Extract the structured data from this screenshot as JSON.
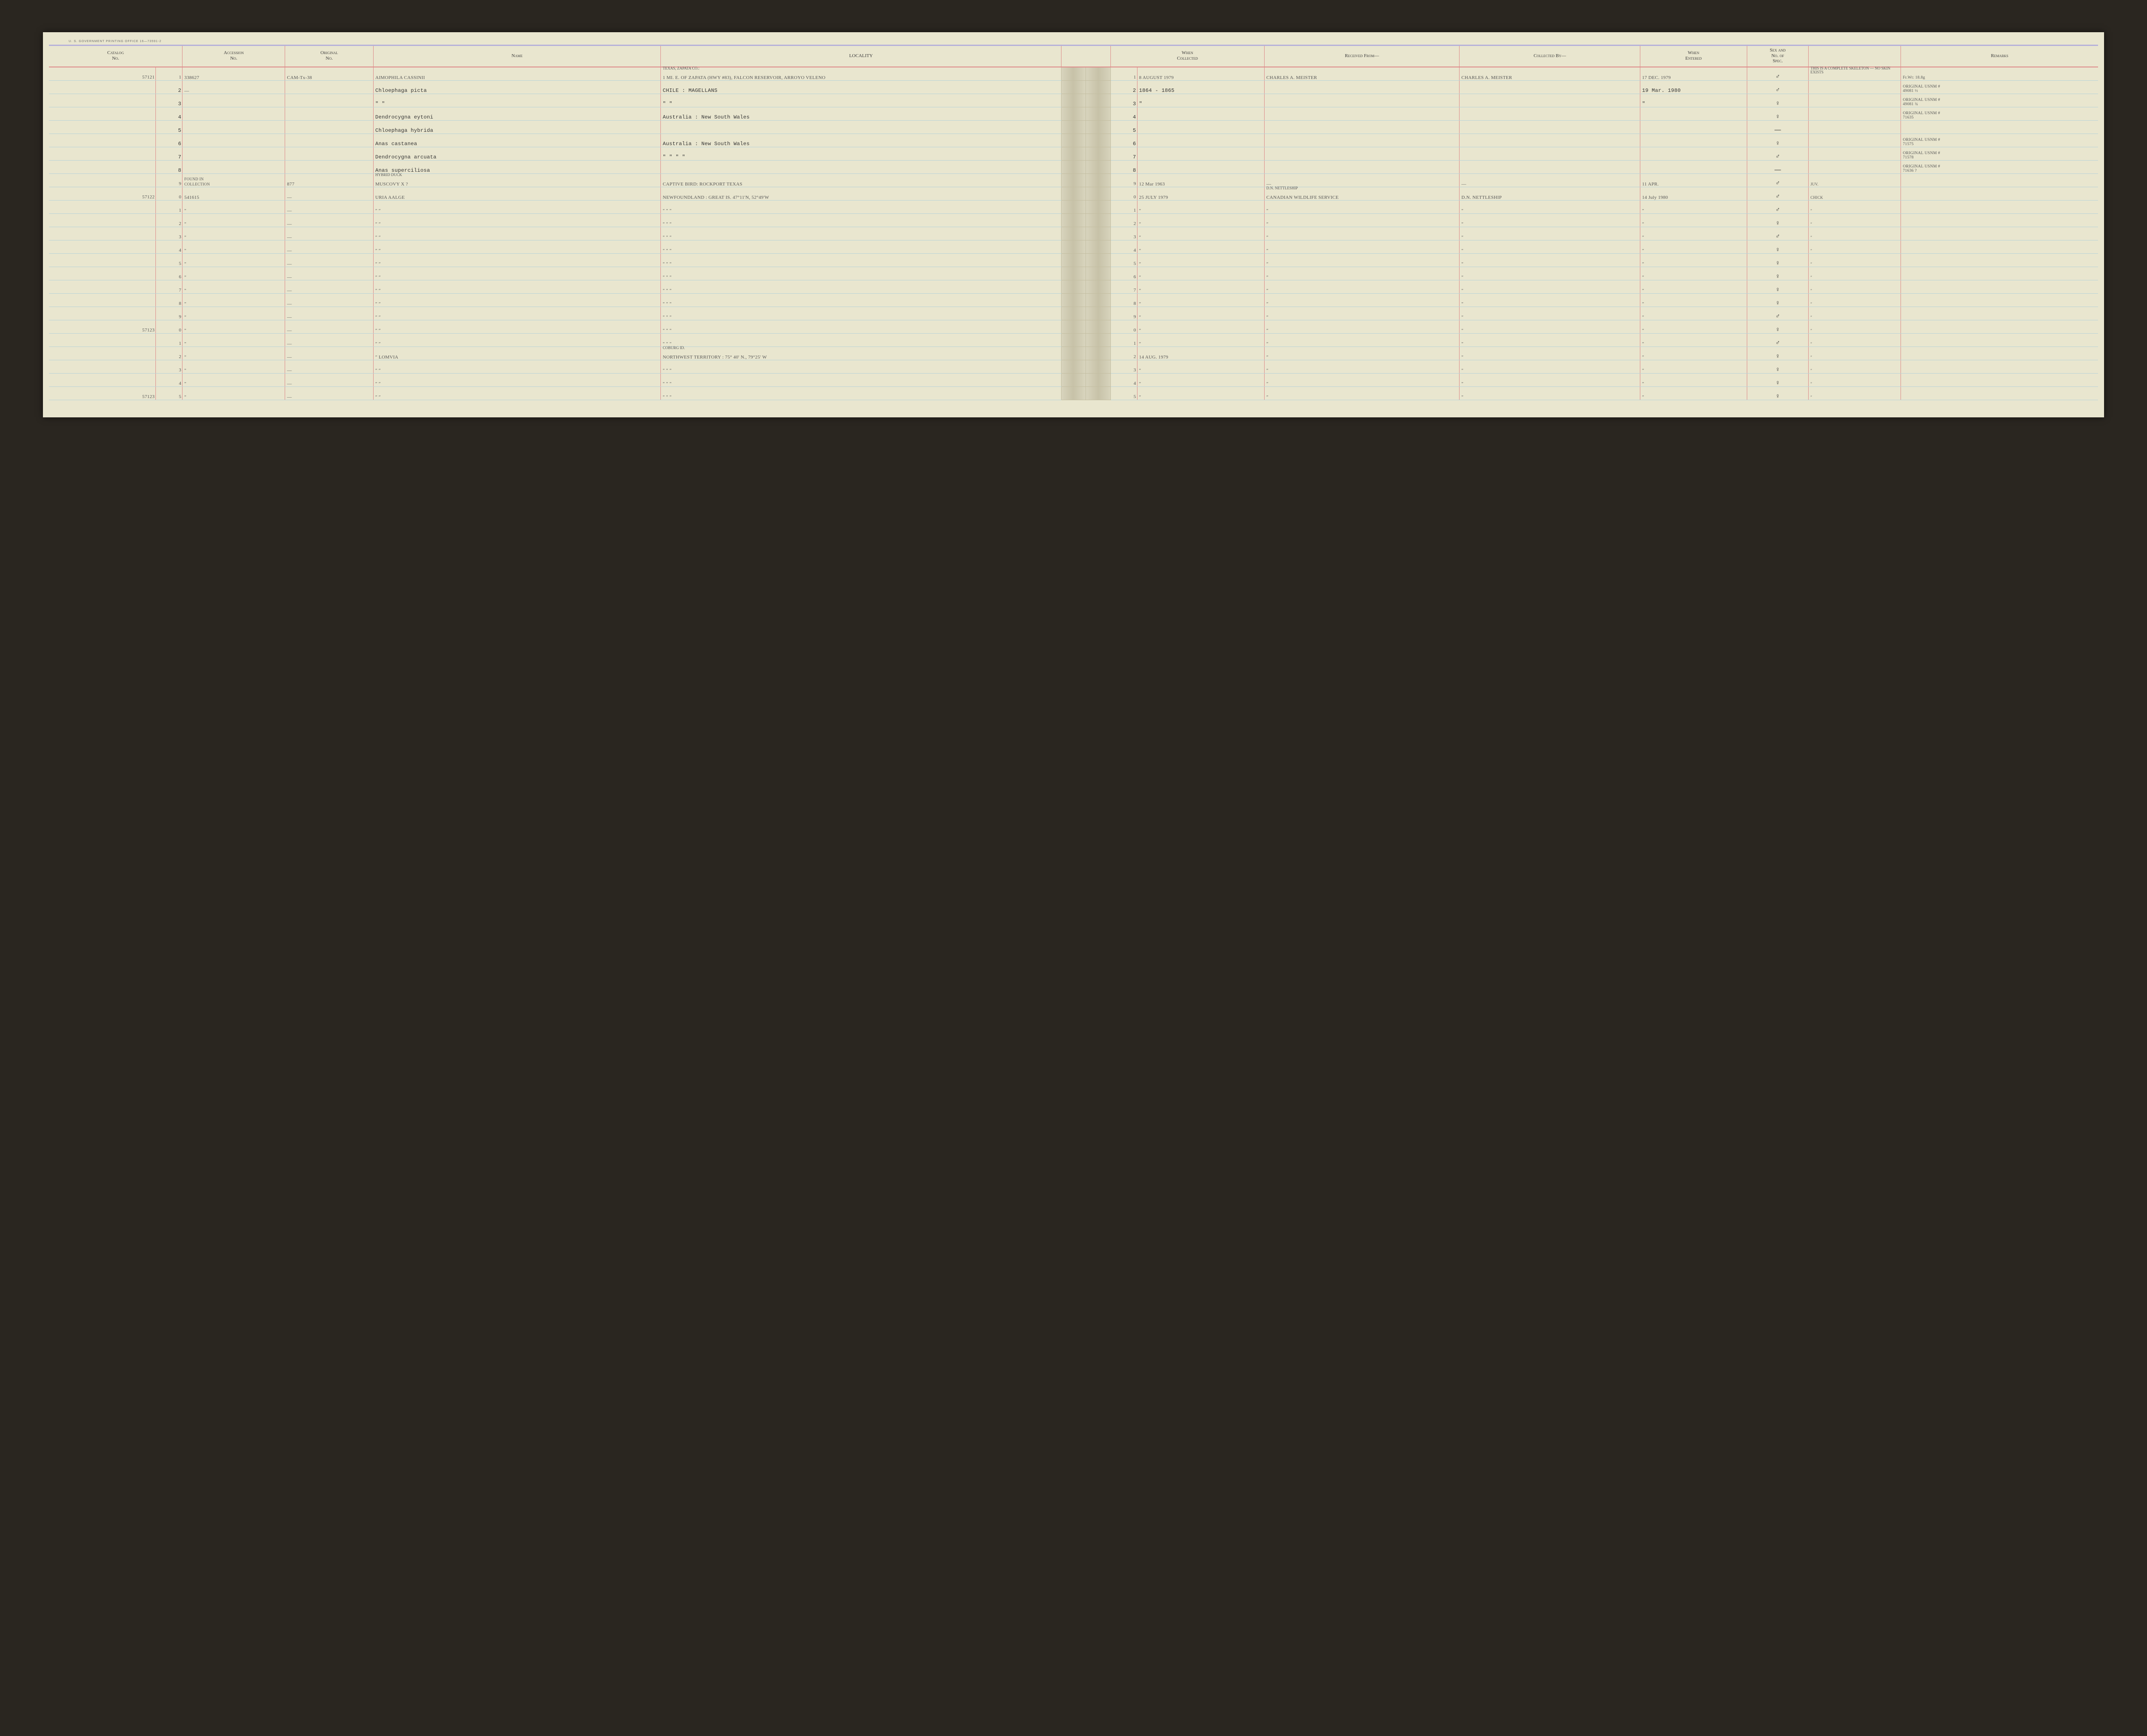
{
  "meta": {
    "gov_print_line": "U. S. GOVERNMENT PRINTING OFFICE    16—73591-2",
    "page_bg": "#e9e6cf",
    "rule_red": "#d88",
    "rule_blue": "#b9d3d8",
    "rule_purple": "#b6b0da"
  },
  "headers": {
    "catalog": "Catalog\nNo.",
    "accession": "Accession\nNo.",
    "original": "Original\nNo.",
    "name": "Name",
    "locality": "LOCALITY",
    "when_collected": "When\nCollected",
    "received_from": "Received From—",
    "collected_by": "Collected By—",
    "when_entered": "When\nEntered",
    "sex": "Sex and\nNo. of\nSpec.",
    "remarks": "Remarks"
  },
  "rows": [
    {
      "cat": "57121",
      "sub": "1",
      "acc": "338627",
      "orig": "CAM-Tx-38",
      "name": "AIMOPHILA  CASSINII",
      "name_above": "",
      "loc": "1 MI. E. OF ZAPATA (HWY #83), FALCON RESERVOIR, ARROYO VELENO",
      "loc_above": "TEXAS, ZAPATA CO.:",
      "sub2": "1",
      "when": "8 AUGUST 1979",
      "recv": "CHARLES A. MEISTER",
      "coll": "CHARLES A. MEISTER",
      "ent": "17 DEC. 1979",
      "sex": "♂",
      "spec": "",
      "spec_above": "THIS IS A COMPLETE SKELETON — NO SKIN EXISTS",
      "rem": "Fr.Wt: 18.8g",
      "style": "hand"
    },
    {
      "cat": "",
      "sub": "2",
      "acc": "—",
      "orig": "",
      "name": "Chloephaga picta",
      "loc": "CHILE : MAGELLANS",
      "sub2": "2",
      "when": "1864 - 1865",
      "recv": "",
      "coll": "",
      "ent": "19 Mar. 1980",
      "sex": "♂",
      "spec": "",
      "rem": "ORIGINAL USNM #\n49081 ½",
      "style": "type"
    },
    {
      "cat": "",
      "sub": "3",
      "acc": "",
      "orig": "",
      "name": "″          ″",
      "loc": "″          ″",
      "sub2": "3",
      "when": "″",
      "recv": "",
      "coll": "",
      "ent": "″",
      "sex": "♀",
      "spec": "",
      "rem": "ORIGINAL USNM #\n49081 ¾",
      "style": "type"
    },
    {
      "cat": "",
      "sub": "4",
      "acc": "",
      "orig": "",
      "name": "Dendrocygna eytoni",
      "loc": "Australia : New South Wales",
      "sub2": "4",
      "when": "",
      "recv": "",
      "coll": "",
      "ent": "",
      "sex": "♀",
      "spec": "",
      "rem": "ORIGINAL USNM #\n71635",
      "style": "type"
    },
    {
      "cat": "",
      "sub": "5",
      "acc": "",
      "orig": "",
      "name": "Chloephaga hybrida",
      "loc": "",
      "sub2": "5",
      "when": "",
      "recv": "",
      "coll": "",
      "ent": "",
      "sex": "—",
      "spec": "",
      "rem": "",
      "style": "type"
    },
    {
      "cat": "",
      "sub": "6",
      "acc": "",
      "orig": "",
      "name": "Anas castanea",
      "loc": "Australia : New South Wales",
      "sub2": "6",
      "when": "",
      "recv": "",
      "coll": "",
      "ent": "",
      "sex": "♀",
      "spec": "",
      "rem": "ORIGINAL USNM #\n71575",
      "style": "type"
    },
    {
      "cat": "",
      "sub": "7",
      "acc": "",
      "orig": "",
      "name": "Dendrocygna arcuata",
      "loc": "″       ″      ″     ″",
      "sub2": "7",
      "when": "",
      "recv": "",
      "coll": "",
      "ent": "",
      "sex": "♂",
      "spec": "",
      "rem": "ORIGINAL USNM #\n71578",
      "style": "type"
    },
    {
      "cat": "",
      "sub": "8",
      "acc": "",
      "orig": "",
      "name": "Anas superciliosa",
      "loc": "",
      "sub2": "8",
      "when": "",
      "recv": "",
      "coll": "",
      "ent": "",
      "sex": "—",
      "spec": "",
      "rem": "ORIGINAL USNM #\n71636 ?",
      "style": "type"
    },
    {
      "cat": "",
      "sub": "9",
      "acc": "FOUND IN\nCOLLECTION",
      "orig": "877",
      "name": "MUSCOVY X  ?",
      "name_above": "HYBRID DUCK",
      "loc": "CAPTIVE BIRD:  ROCKPORT TEXAS",
      "sub2": "9",
      "when": "12 Mar 1963",
      "recv": "—",
      "coll": "—",
      "ent": "11 APR.",
      "sex": "♂",
      "spec": "JUV.",
      "rem": "",
      "style": "hand"
    },
    {
      "cat": "57122",
      "sub": "0",
      "acc": "541615",
      "orig": "—",
      "name": "URIA AALGE",
      "loc": "NEWFOUNDLAND : GREAT IS. 47°11'N, 52°49'W",
      "sub2": "0",
      "when": "25 JULY 1979",
      "recv": "CANADIAN WILDLIFE SERVICE",
      "recv_above": "D.N. NETTLESHIP",
      "coll": "D.N. NETTLESHIP",
      "ent": "14 July 1980",
      "sex": "♂",
      "spec": "CHICK",
      "rem": "",
      "style": "hand"
    },
    {
      "cat": "",
      "sub": "1",
      "acc": "″",
      "orig": "—",
      "name": "″        ″",
      "loc": "″               ″               ″",
      "sub2": "1",
      "when": "″",
      "recv": "″",
      "coll": "″",
      "ent": "″",
      "sex": "♂",
      "spec": "″",
      "rem": "",
      "style": "hand"
    },
    {
      "cat": "",
      "sub": "2",
      "acc": "″",
      "orig": "—",
      "name": "″        ″",
      "loc": "″               ″               ″",
      "sub2": "2",
      "when": "″",
      "recv": "″",
      "coll": "″",
      "ent": "″",
      "sex": "♀",
      "spec": "″",
      "rem": "",
      "style": "hand"
    },
    {
      "cat": "",
      "sub": "3",
      "acc": "″",
      "orig": "—",
      "name": "″        ″",
      "loc": "″               ″               ″",
      "sub2": "3",
      "when": "″",
      "recv": "″",
      "coll": "″",
      "ent": "″",
      "sex": "♂",
      "spec": "″",
      "rem": "",
      "style": "hand"
    },
    {
      "cat": "",
      "sub": "4",
      "acc": "″",
      "orig": "—",
      "name": "″        ″",
      "loc": "″               ″               ″",
      "sub2": "4",
      "when": "″",
      "recv": "″",
      "coll": "″",
      "ent": "″",
      "sex": "♀",
      "spec": "″",
      "rem": "",
      "style": "hand"
    },
    {
      "cat": "",
      "sub": "5",
      "acc": "″",
      "orig": "—",
      "name": "″        ″",
      "loc": "″               ″               ″",
      "sub2": "5",
      "when": "″",
      "recv": "″",
      "coll": "″",
      "ent": "″",
      "sex": "♀",
      "spec": "″",
      "rem": "",
      "style": "hand"
    },
    {
      "cat": "",
      "sub": "6",
      "acc": "″",
      "orig": "—",
      "name": "″        ″",
      "loc": "″               ″               ″",
      "sub2": "6",
      "when": "″",
      "recv": "″",
      "coll": "″",
      "ent": "″",
      "sex": "♀",
      "spec": "″",
      "rem": "",
      "style": "hand"
    },
    {
      "cat": "",
      "sub": "7",
      "acc": "″",
      "orig": "—",
      "name": "″        ″",
      "loc": "″               ″               ″",
      "sub2": "7",
      "when": "″",
      "recv": "″",
      "coll": "″",
      "ent": "″",
      "sex": "♀",
      "spec": "″",
      "rem": "",
      "style": "hand"
    },
    {
      "cat": "",
      "sub": "8",
      "acc": "″",
      "orig": "—",
      "name": "″        ″",
      "loc": "″               ″               ″",
      "sub2": "8",
      "when": "″",
      "recv": "″",
      "coll": "″",
      "ent": "″",
      "sex": "♀",
      "spec": "″",
      "rem": "",
      "style": "hand"
    },
    {
      "cat": "",
      "sub": "9",
      "acc": "″",
      "orig": "—",
      "name": "″        ″",
      "loc": "″               ″               ″",
      "sub2": "9",
      "when": "″",
      "recv": "″",
      "coll": "″",
      "ent": "″",
      "sex": "♂",
      "spec": "″",
      "rem": "",
      "style": "hand"
    },
    {
      "cat": "57123",
      "sub": "0",
      "acc": "″",
      "orig": "—",
      "name": "″        ″",
      "loc": "″               ″               ″",
      "sub2": "0",
      "when": "″",
      "recv": "″",
      "coll": "″",
      "ent": "″",
      "sex": "♀",
      "spec": "″",
      "rem": "",
      "style": "hand"
    },
    {
      "cat": "",
      "sub": "1",
      "acc": "″",
      "orig": "—",
      "name": "″        ″",
      "loc": "″               ″               ″",
      "sub2": "1",
      "when": "″",
      "recv": "″",
      "coll": "″",
      "ent": "″",
      "sex": "♂",
      "spec": "″",
      "rem": "",
      "style": "hand"
    },
    {
      "cat": "",
      "sub": "2",
      "acc": "″",
      "orig": "—",
      "name": "″     LOMVIA",
      "loc": "NORTHWEST TERRITORY :  75° 40' N., 79°25' W",
      "loc_above": "COBURG ID.",
      "sub2": "2",
      "when": "14 AUG. 1979",
      "recv": "″",
      "coll": "″",
      "ent": "″",
      "sex": "♀",
      "spec": "″",
      "rem": "",
      "style": "hand"
    },
    {
      "cat": "",
      "sub": "3",
      "acc": "″",
      "orig": "—",
      "name": "″        ″",
      "loc": "″               ″               ″",
      "sub2": "3",
      "when": "″",
      "recv": "″",
      "coll": "″",
      "ent": "″",
      "sex": "♀",
      "spec": "″",
      "rem": "",
      "style": "hand"
    },
    {
      "cat": "",
      "sub": "4",
      "acc": "″",
      "orig": "—",
      "name": "″        ″",
      "loc": "″               ″               ″",
      "sub2": "4",
      "when": "″",
      "recv": "″",
      "coll": "″",
      "ent": "″",
      "sex": "♀",
      "spec": "″",
      "rem": "",
      "style": "hand"
    },
    {
      "cat": "57123",
      "sub": "5",
      "acc": "″",
      "orig": "—",
      "name": "″        ″",
      "loc": "″               ″               ″",
      "sub2": "5",
      "when": "″",
      "recv": "″",
      "coll": "″",
      "ent": "″",
      "sex": "♀",
      "spec": "″",
      "rem": "",
      "style": "hand"
    }
  ]
}
